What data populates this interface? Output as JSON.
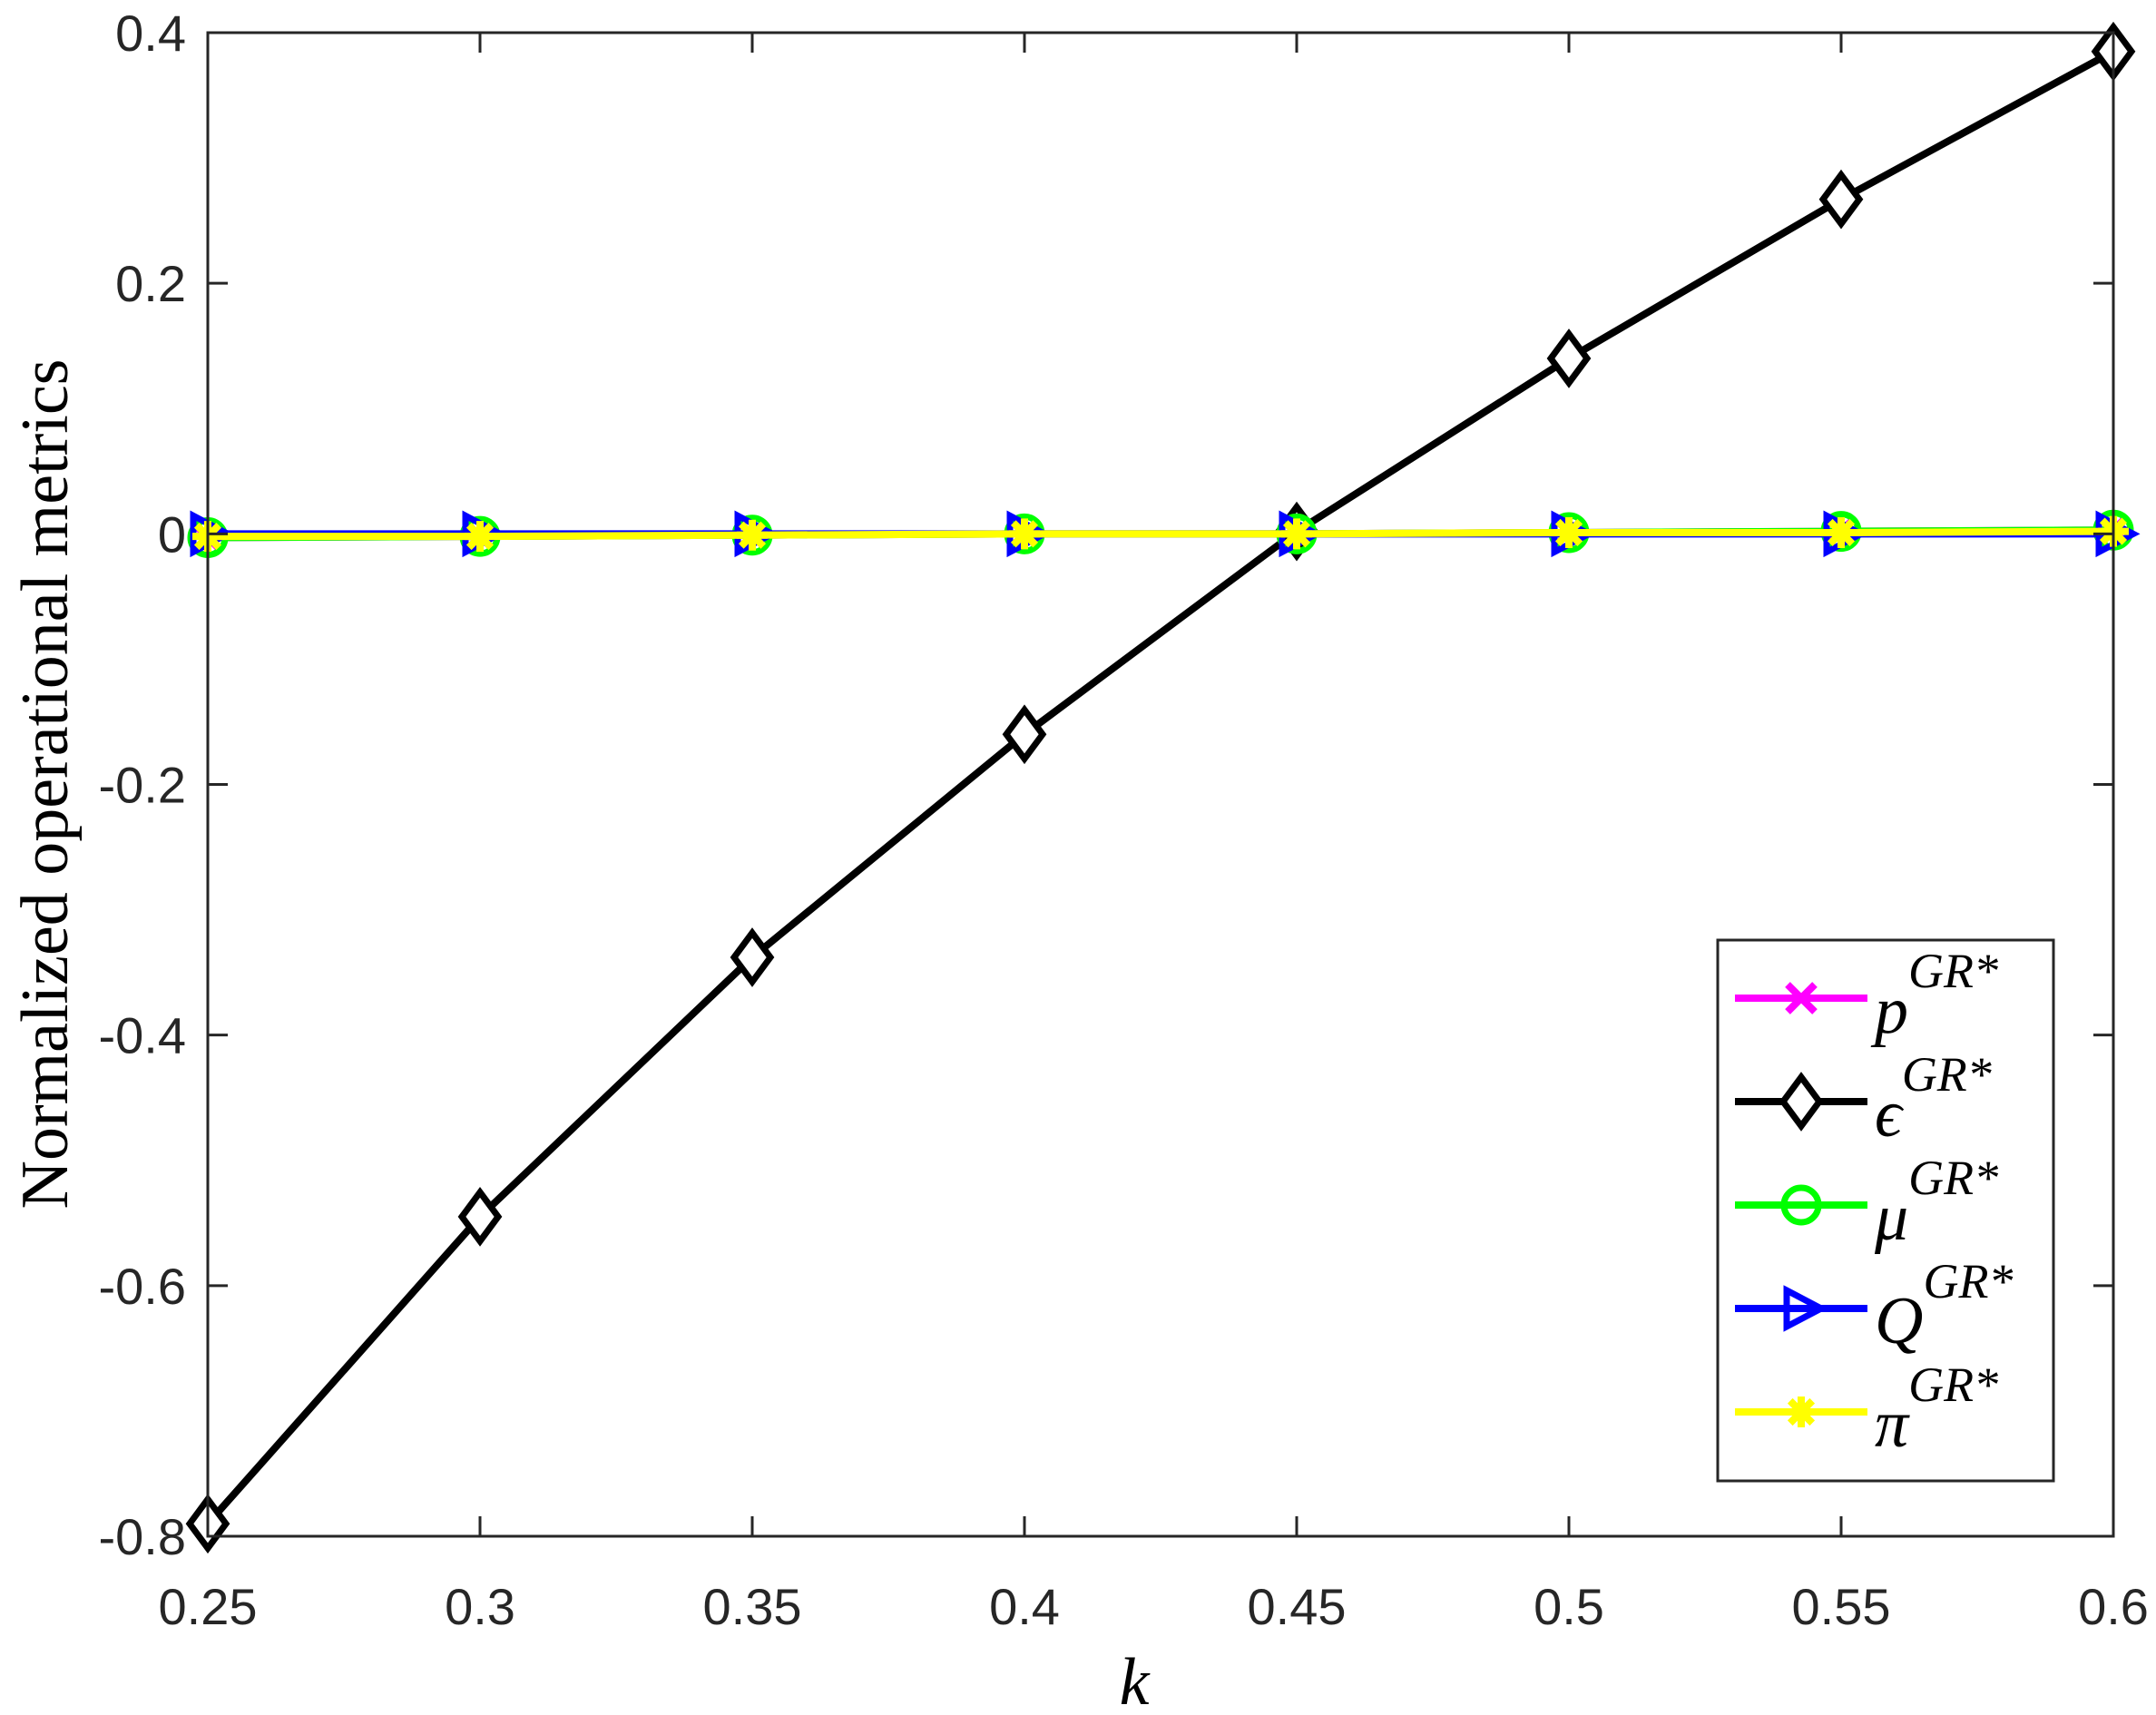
{
  "chart_data": {
    "type": "line",
    "xlabel": "k",
    "ylabel": "Normalized operational metrics",
    "xlim": [
      0.25,
      0.6
    ],
    "ylim": [
      -0.8,
      0.4
    ],
    "x": [
      0.25,
      0.3,
      0.35,
      0.4,
      0.45,
      0.5,
      0.55,
      0.6
    ],
    "x_tick_labels": [
      "0.25",
      "0.3",
      "0.35",
      "0.4",
      "0.45",
      "0.5",
      "0.55",
      "0.6"
    ],
    "y_ticks": [
      -0.8,
      -0.6,
      -0.4,
      -0.2,
      0,
      0.2,
      0.4
    ],
    "y_tick_labels": [
      "-0.8",
      "-0.6",
      "-0.4",
      "-0.2",
      "0",
      "0.2",
      "0.4"
    ],
    "grid": false,
    "legend_position": "bottom-right",
    "series": [
      {
        "name": "p^{GR*}",
        "name_base": "p",
        "name_sup": "GR*",
        "color": "#ff00ff",
        "marker": "x-cross",
        "values": [
          -0.003,
          -0.002,
          -0.001,
          0.0,
          0.0,
          0.001,
          0.002,
          0.003
        ]
      },
      {
        "name": "ε^{GR*}",
        "name_base": "ϵ",
        "name_sup": "GR*",
        "color": "#000000",
        "marker": "diamond",
        "values": [
          -0.79,
          -0.545,
          -0.338,
          -0.16,
          0.002,
          0.14,
          0.267,
          0.385
        ]
      },
      {
        "name": "μ^{GR*}",
        "name_base": "μ",
        "name_sup": "GR*",
        "color": "#00ff00",
        "marker": "circle",
        "values": [
          -0.003,
          -0.002,
          -0.001,
          0.0,
          0.0,
          0.001,
          0.002,
          0.003
        ]
      },
      {
        "name": "Q^{GR*}",
        "name_base": "Q",
        "name_sup": "GR*",
        "color": "#0000ff",
        "marker": "triangle-right",
        "values": [
          0.0,
          0.0,
          0.0,
          0.0,
          0.0,
          0.0,
          0.0,
          0.0
        ]
      },
      {
        "name": "π^{GR*}",
        "name_base": "π",
        "name_sup": "GR*",
        "color": "#ffff00",
        "marker": "asterisk",
        "values": [
          -0.002,
          -0.002,
          -0.001,
          0.0,
          0.0,
          0.001,
          0.001,
          0.002
        ]
      }
    ]
  }
}
